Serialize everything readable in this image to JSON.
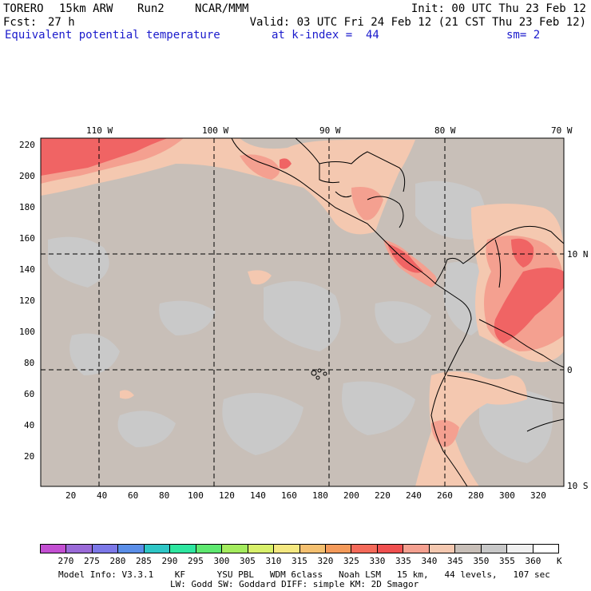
{
  "header": {
    "model": "TORERO",
    "resolution": "15km ARW",
    "run": "Run2",
    "org": "NCAR/MMM",
    "init": "Init: 00 UTC Thu 23 Feb 12",
    "fcst_label": "Fcst:",
    "fcst_value": "27 h",
    "valid": "Valid: 03 UTC Fri 24 Feb 12 (21 CST Thu 23 Feb 12)",
    "field": "Equivalent potential temperature",
    "kindex": "at k-index =  44",
    "smoothing": "sm= 2"
  },
  "map": {
    "top_ticks": [
      "110 W",
      "100 W",
      "90 W",
      "80 W",
      "70 W"
    ],
    "right_ticks": [
      "10 N",
      "0",
      "10 S"
    ],
    "left_ticks": [
      "220",
      "200",
      "180",
      "160",
      "140",
      "120",
      "100",
      "80",
      "60",
      "40",
      "20"
    ],
    "bottom_ticks": [
      "20",
      "40",
      "60",
      "80",
      "100",
      "120",
      "140",
      "160",
      "180",
      "200",
      "220",
      "240",
      "260",
      "280",
      "300",
      "320"
    ],
    "ocean_color": "#c8bfb8",
    "land_color": "#cfc6bf"
  },
  "colorbar": {
    "labels": [
      "270",
      "275",
      "280",
      "285",
      "290",
      "295",
      "300",
      "305",
      "310",
      "315",
      "320",
      "325",
      "330",
      "335",
      "340",
      "345",
      "350",
      "355",
      "360"
    ],
    "unit": "K",
    "colors": [
      "#c34fd2",
      "#9a6ad8",
      "#7c78e8",
      "#5a8ee8",
      "#2ec6c6",
      "#2ee6a0",
      "#5ee870",
      "#a4ec5e",
      "#d8f06a",
      "#f4e880",
      "#f4c070",
      "#f49a5a",
      "#f46a5a",
      "#f05050",
      "#f4a090",
      "#f4c8b0",
      "#c8bfb8",
      "#c8c8c8",
      "#f0f0f0",
      "#ffffff"
    ]
  },
  "footer": {
    "line1": "Model Info: V3.3.1    KF      YSU PBL   WDM 6class   Noah LSM   15 km,   44 levels,   107 sec",
    "line2": "LW: Godd SW: Goddard DIFF: simple KM: 2D Smagor"
  }
}
